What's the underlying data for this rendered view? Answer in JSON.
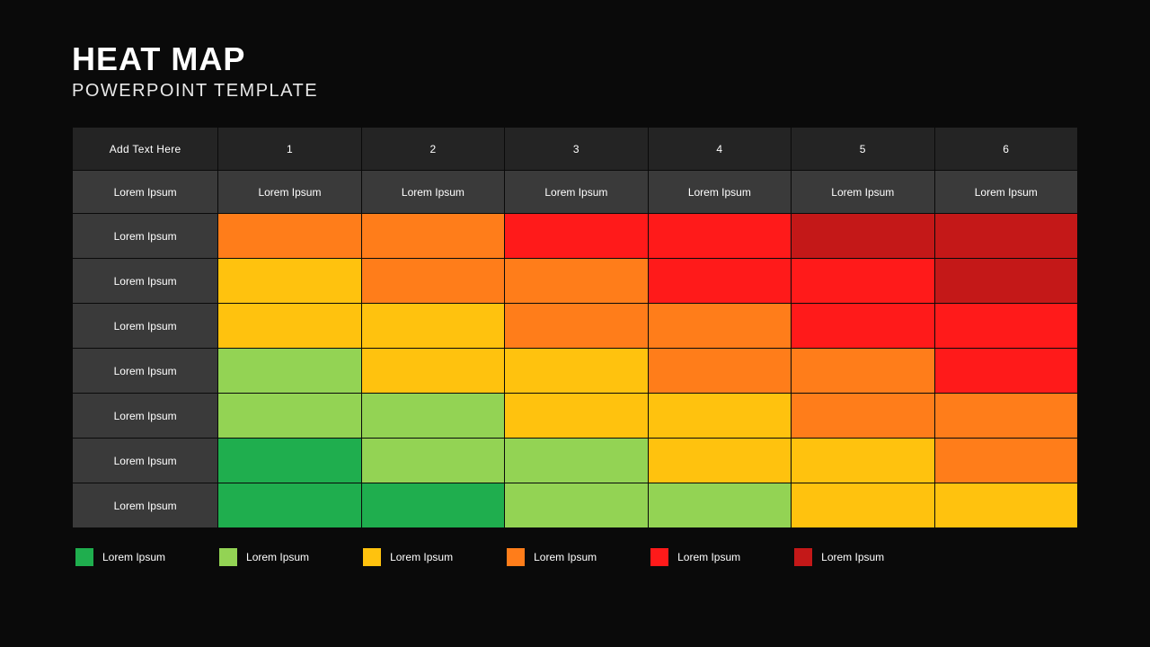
{
  "header": {
    "title": "HEAT MAP",
    "subtitle": "POWERPOINT TEMPLATE"
  },
  "heatmap": {
    "type": "heatmap",
    "corner_label": "Add Text Here",
    "column_headers": [
      "1",
      "2",
      "3",
      "4",
      "5",
      "6"
    ],
    "subheaders": [
      "Lorem Ipsum",
      "Lorem Ipsum",
      "Lorem Ipsum",
      "Lorem Ipsum",
      "Lorem Ipsum",
      "Lorem Ipsum",
      "Lorem Ipsum"
    ],
    "row_labels": [
      "Lorem Ipsum",
      "Lorem Ipsum",
      "Lorem Ipsum",
      "Lorem Ipsum",
      "Lorem Ipsum",
      "Lorem Ipsum",
      "Lorem Ipsum"
    ],
    "palette": {
      "green": "#1fae4e",
      "lightgreen": "#93d354",
      "yellow": "#ffc20e",
      "orange": "#ff7d1a",
      "red": "#ff1a1a",
      "darkred": "#c41818"
    },
    "cells": [
      [
        "orange",
        "orange",
        "red",
        "red",
        "darkred",
        "darkred"
      ],
      [
        "yellow",
        "orange",
        "orange",
        "red",
        "red",
        "darkred"
      ],
      [
        "yellow",
        "yellow",
        "orange",
        "orange",
        "red",
        "red"
      ],
      [
        "lightgreen",
        "yellow",
        "yellow",
        "orange",
        "orange",
        "red"
      ],
      [
        "lightgreen",
        "lightgreen",
        "yellow",
        "yellow",
        "orange",
        "orange"
      ],
      [
        "green",
        "lightgreen",
        "lightgreen",
        "yellow",
        "yellow",
        "orange"
      ],
      [
        "green",
        "green",
        "lightgreen",
        "lightgreen",
        "yellow",
        "yellow"
      ]
    ],
    "header_bg": "#242424",
    "subheader_bg": "#3a3a3a",
    "row_label_bg": "#3a3a3a",
    "border_color": "#0a0a0a",
    "text_color": "#ffffff",
    "cell_fontsize": 12,
    "title_fontsize": 36,
    "subtitle_fontsize": 20
  },
  "legend": {
    "items": [
      {
        "color_key": "green",
        "label": "Lorem Ipsum"
      },
      {
        "color_key": "lightgreen",
        "label": "Lorem Ipsum"
      },
      {
        "color_key": "yellow",
        "label": "Lorem Ipsum"
      },
      {
        "color_key": "orange",
        "label": "Lorem Ipsum"
      },
      {
        "color_key": "red",
        "label": "Lorem Ipsum"
      },
      {
        "color_key": "darkred",
        "label": "Lorem Ipsum"
      }
    ]
  },
  "background_color": "#0a0a0a"
}
